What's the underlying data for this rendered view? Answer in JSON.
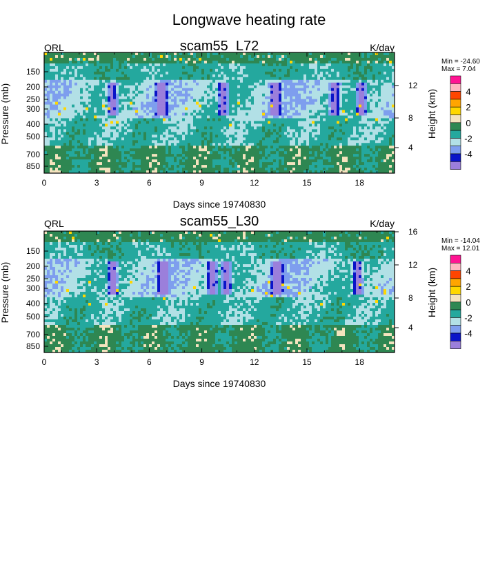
{
  "figure": {
    "title": "Longwave heating rate",
    "palette": {
      "lt_neg4": "#9B7FDB",
      "neg4_neg3": "#0A14C8",
      "neg3_neg2": "#7E9EEE",
      "neg2_neg1": "#B2E0E6",
      "neg1_0": "#24A89E",
      "0_1": "#2E8752",
      "1_2": "#F4E3BE",
      "2_3": "#FFD700",
      "3_4": "#FFA500",
      "4_5": "#FF4500",
      "5_6": "#FFB6C1",
      "gt_6": "#FF1493"
    }
  },
  "chart_data": [
    {
      "type": "heatmap",
      "title": "scam55_L72",
      "left_label": "QRL",
      "right_label": "K/day",
      "xlabel": "Days since 19740830",
      "ylabel": "Pressure (mb)",
      "y2label": "Height (km)",
      "x_ticks": [
        "0",
        "3",
        "6",
        "9",
        "12",
        "15",
        "18"
      ],
      "x_range": [
        0,
        20
      ],
      "y_ticks": [
        "150",
        "200",
        "250",
        "300",
        "400",
        "500",
        "700",
        "850"
      ],
      "y_scale": "log",
      "y_range": [
        1000,
        110
      ],
      "y2_ticks": [
        "12",
        "8",
        "4"
      ],
      "stats": {
        "min_label": "Min = -24.60",
        "max_label": "Max =   7.04"
      },
      "colorbar": {
        "levels": [
          -5,
          -4,
          -3,
          -2,
          -1,
          0,
          1,
          2,
          3,
          4,
          5
        ],
        "tick_labels": [
          "4",
          "2",
          "0",
          "-2",
          "-4"
        ]
      }
    },
    {
      "type": "heatmap",
      "title": "scam55_L30",
      "left_label": "QRL",
      "right_label": "K/day",
      "xlabel": "Days since 19740830",
      "ylabel": "Pressure (mb)",
      "y2label": "Height (km)",
      "x_ticks": [
        "0",
        "3",
        "6",
        "9",
        "12",
        "15",
        "18"
      ],
      "x_range": [
        0,
        20
      ],
      "y_ticks": [
        "150",
        "200",
        "250",
        "300",
        "400",
        "500",
        "700",
        "850"
      ],
      "y_scale": "log",
      "y_range": [
        1000,
        100
      ],
      "y2_ticks": [
        "16",
        "12",
        "8",
        "4"
      ],
      "stats": {
        "min_label": "Min = -14.04",
        "max_label": "Max =  12.01"
      },
      "colorbar": {
        "levels": [
          -5,
          -4,
          -3,
          -2,
          -1,
          0,
          1,
          2,
          3,
          4,
          5
        ],
        "tick_labels": [
          "4",
          "2",
          "0",
          "-2",
          "-4"
        ]
      }
    }
  ]
}
